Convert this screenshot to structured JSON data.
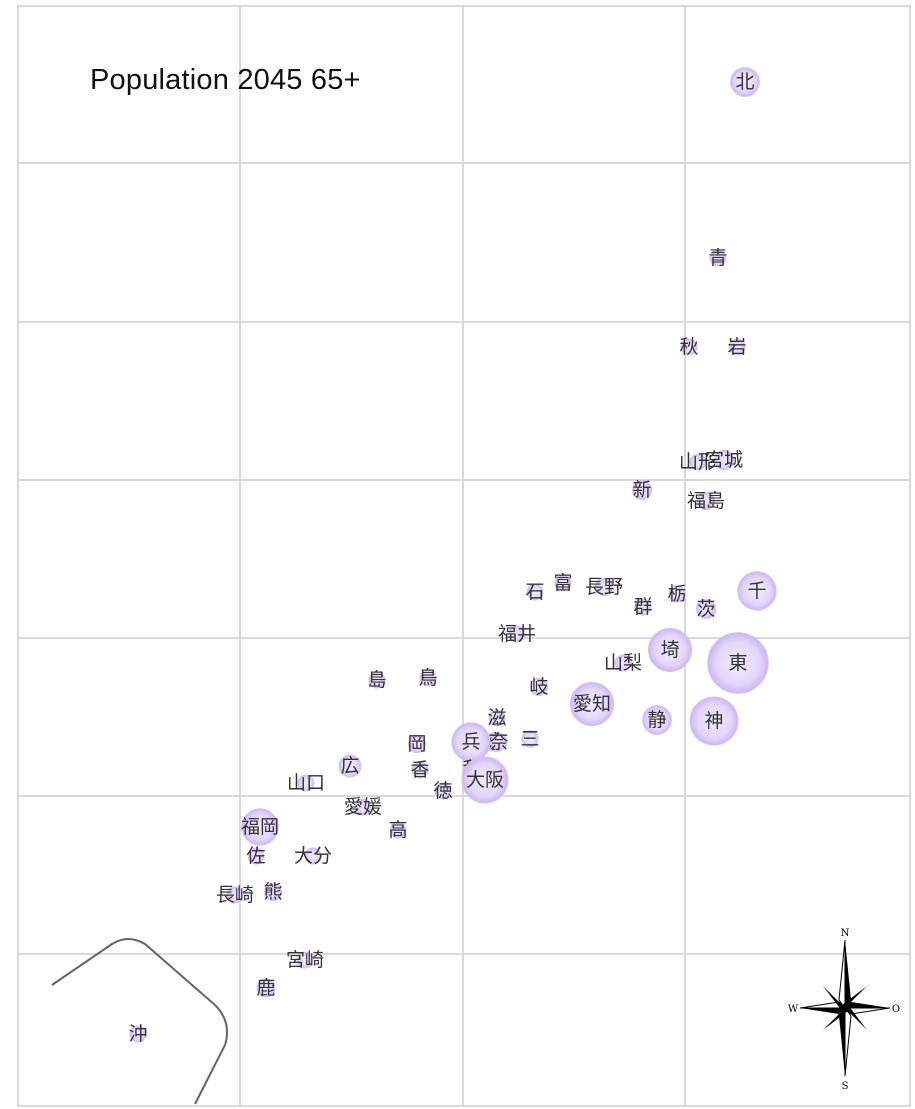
{
  "map": {
    "title": "Population 2045 65+",
    "bubble_color": "#d9c8f7",
    "bubble_edge_color": "#c9b3f0",
    "grid_color": "#d9d9d9",
    "compass": {
      "n": "N",
      "s": "S",
      "w": "W",
      "e": "O"
    }
  },
  "prefectures": [
    {
      "label": "北",
      "size": 0.3
    },
    {
      "label": "青",
      "size": 0.14
    },
    {
      "label": "秋",
      "size": 0.12
    },
    {
      "label": "岩",
      "size": 0.14
    },
    {
      "label": "山形",
      "size": 0.12
    },
    {
      "label": "宮城",
      "size": 0.2
    },
    {
      "label": "新",
      "size": 0.2
    },
    {
      "label": "福島",
      "size": 0.18
    },
    {
      "label": "石",
      "size": 0.12
    },
    {
      "label": "富",
      "size": 0.11
    },
    {
      "label": "長野",
      "size": 0.18
    },
    {
      "label": "栃",
      "size": 0.16
    },
    {
      "label": "茨",
      "size": 0.2
    },
    {
      "label": "千",
      "size": 0.4
    },
    {
      "label": "群",
      "size": 0.17
    },
    {
      "label": "福井",
      "size": 0.09
    },
    {
      "label": "山梨",
      "size": 0.08
    },
    {
      "label": "埼",
      "size": 0.45
    },
    {
      "label": "東",
      "size": 0.63
    },
    {
      "label": "岐",
      "size": 0.18
    },
    {
      "label": "愛知",
      "size": 0.45
    },
    {
      "label": "静",
      "size": 0.3
    },
    {
      "label": "神",
      "size": 0.5
    },
    {
      "label": "島",
      "size": 0.07
    },
    {
      "label": "鳥",
      "size": 0.07
    },
    {
      "label": "滋",
      "size": 0.14
    },
    {
      "label": "京",
      "size": 0.2
    },
    {
      "label": "奈",
      "size": 0.16
    },
    {
      "label": "三",
      "size": 0.17
    },
    {
      "label": "兵",
      "size": 0.4
    },
    {
      "label": "和",
      "size": 0.11
    },
    {
      "label": "大阪",
      "size": 0.48
    },
    {
      "label": "岡",
      "size": 0.18
    },
    {
      "label": "香",
      "size": 0.11
    },
    {
      "label": "広",
      "size": 0.23
    },
    {
      "label": "山口",
      "size": 0.15
    },
    {
      "label": "徳",
      "size": 0.11
    },
    {
      "label": "愛媛",
      "size": 0.15
    },
    {
      "label": "高",
      "size": 0.09
    },
    {
      "label": "福岡",
      "size": 0.38
    },
    {
      "label": "佐",
      "size": 0.12
    },
    {
      "label": "大分",
      "size": 0.15
    },
    {
      "label": "長崎",
      "size": 0.15
    },
    {
      "label": "熊",
      "size": 0.18
    },
    {
      "label": "宮崎",
      "size": 0.15
    },
    {
      "label": "鹿",
      "size": 0.19
    },
    {
      "label": "沖",
      "size": 0.15
    }
  ]
}
